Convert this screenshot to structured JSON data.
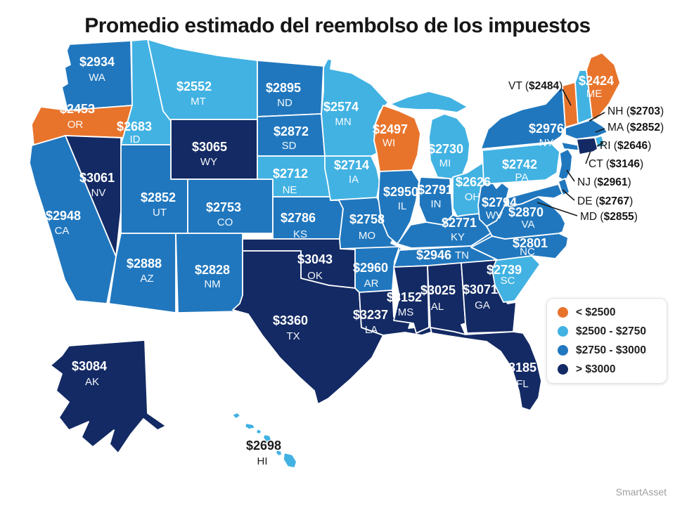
{
  "attribution": "SmartAsset",
  "chart_data": {
    "type": "heatmap",
    "title": "Promedio estimado del reembolso de los impuestos",
    "colors": {
      "lt2500": "#E8742C",
      "b2500": "#41B2E2",
      "b2750": "#2077BE",
      "gt3000": "#132A64"
    },
    "legend": [
      {
        "id": "lt2500",
        "label": "< $2500"
      },
      {
        "id": "b2500",
        "label": "$2500 - $2750"
      },
      {
        "id": "b2750",
        "label": "$2750 - $3000"
      },
      {
        "id": "gt3000",
        "label": "> $3000"
      }
    ],
    "states": [
      {
        "abbr": "WA",
        "value": 2934,
        "label": "$2934",
        "bucket": "b2750"
      },
      {
        "abbr": "OR",
        "value": 2453,
        "label": "$2453",
        "bucket": "lt2500"
      },
      {
        "abbr": "CA",
        "value": 2948,
        "label": "$2948",
        "bucket": "b2750"
      },
      {
        "abbr": "NV",
        "value": 3061,
        "label": "$3061",
        "bucket": "gt3000"
      },
      {
        "abbr": "ID",
        "value": 2683,
        "label": "$2683",
        "bucket": "b2500"
      },
      {
        "abbr": "MT",
        "value": 2552,
        "label": "$2552",
        "bucket": "b2500"
      },
      {
        "abbr": "WY",
        "value": 3065,
        "label": "$3065",
        "bucket": "gt3000"
      },
      {
        "abbr": "UT",
        "value": 2852,
        "label": "$2852",
        "bucket": "b2750"
      },
      {
        "abbr": "CO",
        "value": 2753,
        "label": "$2753",
        "bucket": "b2750"
      },
      {
        "abbr": "AZ",
        "value": 2888,
        "label": "$2888",
        "bucket": "b2750"
      },
      {
        "abbr": "NM",
        "value": 2828,
        "label": "$2828",
        "bucket": "b2750"
      },
      {
        "abbr": "ND",
        "value": 2895,
        "label": "$2895",
        "bucket": "b2750"
      },
      {
        "abbr": "SD",
        "value": 2872,
        "label": "$2872",
        "bucket": "b2750"
      },
      {
        "abbr": "NE",
        "value": 2712,
        "label": "$2712",
        "bucket": "b2500"
      },
      {
        "abbr": "KS",
        "value": 2786,
        "label": "$2786",
        "bucket": "b2750"
      },
      {
        "abbr": "OK",
        "value": 3043,
        "label": "$3043",
        "bucket": "gt3000"
      },
      {
        "abbr": "TX",
        "value": 3360,
        "label": "$3360",
        "bucket": "gt3000"
      },
      {
        "abbr": "MN",
        "value": 2574,
        "label": "$2574",
        "bucket": "b2500"
      },
      {
        "abbr": "IA",
        "value": 2714,
        "label": "$2714",
        "bucket": "b2500"
      },
      {
        "abbr": "MO",
        "value": 2758,
        "label": "$2758",
        "bucket": "b2750"
      },
      {
        "abbr": "AR",
        "value": 2960,
        "label": "$2960",
        "bucket": "b2750"
      },
      {
        "abbr": "LA",
        "value": 3237,
        "label": "$3237",
        "bucket": "gt3000"
      },
      {
        "abbr": "WI",
        "value": 2497,
        "label": "$2497",
        "bucket": "lt2500"
      },
      {
        "abbr": "MI",
        "value": 2730,
        "label": "$2730",
        "bucket": "b2500"
      },
      {
        "abbr": "IL",
        "value": 2950,
        "label": "$2950",
        "bucket": "b2750"
      },
      {
        "abbr": "IN",
        "value": 2791,
        "label": "$2791",
        "bucket": "b2750"
      },
      {
        "abbr": "OH",
        "value": 2626,
        "label": "$2626",
        "bucket": "b2500"
      },
      {
        "abbr": "KY",
        "value": 2771,
        "label": "$2771",
        "bucket": "b2750"
      },
      {
        "abbr": "TN",
        "value": 2946,
        "label": "$2946",
        "bucket": "b2750"
      },
      {
        "abbr": "MS",
        "value": 3152,
        "label": "$3152",
        "bucket": "gt3000"
      },
      {
        "abbr": "AL",
        "value": 3025,
        "label": "$3025",
        "bucket": "gt3000"
      },
      {
        "abbr": "GA",
        "value": 3071,
        "label": "$3071",
        "bucket": "gt3000"
      },
      {
        "abbr": "FL",
        "value": 3185,
        "label": "$3185",
        "bucket": "gt3000"
      },
      {
        "abbr": "SC",
        "value": 2739,
        "label": "$2739",
        "bucket": "b2500"
      },
      {
        "abbr": "NC",
        "value": 2801,
        "label": "$2801",
        "bucket": "b2750"
      },
      {
        "abbr": "VA",
        "value": 2870,
        "label": "$2870",
        "bucket": "b2750"
      },
      {
        "abbr": "WV",
        "value": 2794,
        "label": "$2794",
        "bucket": "b2750"
      },
      {
        "abbr": "PA",
        "value": 2742,
        "label": "$2742",
        "bucket": "b2500"
      },
      {
        "abbr": "NY",
        "value": 2976,
        "label": "$2976",
        "bucket": "b2750"
      },
      {
        "abbr": "ME",
        "value": 2424,
        "label": "$2424",
        "bucket": "lt2500"
      },
      {
        "abbr": "AK",
        "value": 3084,
        "label": "$3084",
        "bucket": "gt3000"
      },
      {
        "abbr": "HI",
        "value": 2698,
        "label": "$2698",
        "bucket": "b2500"
      }
    ],
    "callouts": [
      {
        "abbr": "VT",
        "value": 2484,
        "prefix": "VT (",
        "amount": "$2484",
        "suffix": ")",
        "bucket": "lt2500"
      },
      {
        "abbr": "NH",
        "value": 2703,
        "prefix": "NH (",
        "amount": "$2703",
        "suffix": ")",
        "bucket": "b2500"
      },
      {
        "abbr": "MA",
        "value": 2852,
        "prefix": "MA (",
        "amount": "$2852",
        "suffix": ")",
        "bucket": "b2750"
      },
      {
        "abbr": "RI",
        "value": 2646,
        "prefix": "RI (",
        "amount": "$2646",
        "suffix": ")",
        "bucket": "b2500"
      },
      {
        "abbr": "CT",
        "value": 3146,
        "prefix": "CT (",
        "amount": "$3146",
        "suffix": ")",
        "bucket": "gt3000"
      },
      {
        "abbr": "NJ",
        "value": 2961,
        "prefix": "NJ (",
        "amount": "$2961",
        "suffix": ")",
        "bucket": "b2750"
      },
      {
        "abbr": "DE",
        "value": 2767,
        "prefix": "DE (",
        "amount": "$2767",
        "suffix": ")",
        "bucket": "b2750"
      },
      {
        "abbr": "MD",
        "value": 2855,
        "prefix": "MD (",
        "amount": "$2855",
        "suffix": ")",
        "bucket": "b2750"
      }
    ]
  }
}
